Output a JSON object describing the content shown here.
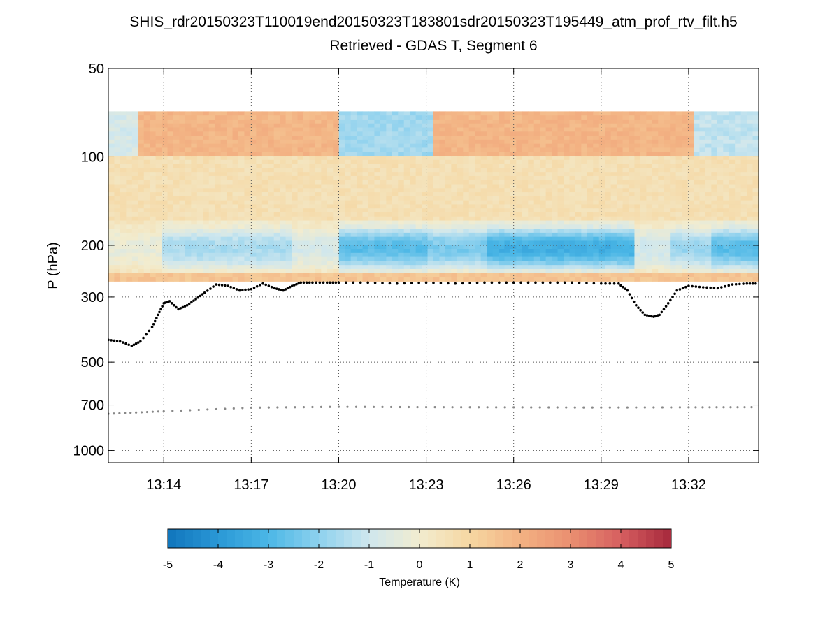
{
  "chart_data": {
    "type": "heatmap",
    "title": "SHIS_rdr20150323T110019end20150323T183801sdr20150323T195449_atm_prof_rtv_filt.h5",
    "subtitle": "Retrieved - GDAS T, Segment 6",
    "ylabel": "P (hPa)",
    "yscale": "log",
    "yaxis_reversed": true,
    "ylim": [
      50,
      1100
    ],
    "y_ticks": [
      50,
      100,
      200,
      300,
      500,
      700,
      1000
    ],
    "y_tick_labels": [
      "50",
      "100",
      "200",
      "300",
      "500",
      "700",
      "1000"
    ],
    "xlim_minutes": [
      792.1,
      814.4
    ],
    "x_ticks_minutes": [
      794,
      797,
      800,
      803,
      806,
      809,
      812
    ],
    "x_tick_labels": [
      "13:14",
      "13:17",
      "13:20",
      "13:23",
      "13:26",
      "13:29",
      "13:32"
    ],
    "grid": true,
    "colorbar": {
      "label": "Temperature (K)",
      "range": [
        -5,
        5
      ],
      "tick_values": [
        -5,
        -4,
        -3,
        -2,
        -1,
        0,
        1,
        2,
        3,
        4,
        5
      ],
      "tick_labels": [
        "-5",
        "-4",
        "-3",
        "-2",
        "-1",
        "0",
        "1",
        "2",
        "3",
        "4",
        "5"
      ],
      "colors": [
        "#1075bc",
        "#2a98d6",
        "#4bb7e6",
        "#8ed1ee",
        "#cfe7ee",
        "#f2eccf",
        "#f6d7a2",
        "#f3b283",
        "#ea8f70",
        "#d65f60",
        "#a6283c"
      ]
    },
    "data_top_pressure": 70,
    "data_bottom_pressure": 265,
    "layers": [
      {
        "name": "upper layer 70-100 hPa",
        "p_top": 70,
        "p_bottom": 100,
        "typical_value": 1.9
      },
      {
        "name": "middle layer 100-165 hPa",
        "p_top": 100,
        "p_bottom": 165,
        "typical_value": 0.6
      },
      {
        "name": "cold band 165-255 hPa",
        "p_top": 165,
        "p_bottom": 255,
        "typical_value": -2.4
      },
      {
        "name": "warm strip near bottom",
        "p_top": 250,
        "p_bottom": 265,
        "typical_value": 1.5
      }
    ],
    "upper_cool_periods": [
      {
        "start": 800.0,
        "end": 803.3,
        "value": -1.7
      },
      {
        "start": 792.1,
        "end": 793.2,
        "value": -0.8
      },
      {
        "start": 812.1,
        "end": 814.4,
        "value": -1.2
      }
    ],
    "cold_band_intensity": [
      {
        "start": 792.1,
        "end": 794.0,
        "value": -0.3
      },
      {
        "start": 794.0,
        "end": 798.3,
        "value": -1.6
      },
      {
        "start": 798.3,
        "end": 800.0,
        "value": -0.8
      },
      {
        "start": 800.0,
        "end": 803.0,
        "value": -2.8
      },
      {
        "start": 803.0,
        "end": 805.0,
        "value": -2.3
      },
      {
        "start": 805.0,
        "end": 810.2,
        "value": -3.3
      },
      {
        "start": 810.2,
        "end": 811.3,
        "value": -0.9
      },
      {
        "start": 811.3,
        "end": 812.7,
        "value": -1.8
      },
      {
        "start": 812.7,
        "end": 814.4,
        "value": -2.8
      }
    ],
    "series": [
      {
        "name": "upper boundary (black dots)",
        "color": "#000000",
        "x": [
          792.1,
          792.5,
          792.9,
          793.2,
          793.6,
          793.8,
          794.0,
          794.2,
          794.5,
          794.8,
          795.1,
          795.4,
          795.8,
          796.2,
          796.6,
          797.0,
          797.4,
          797.8,
          798.1,
          798.4,
          798.7,
          799.1,
          799.6,
          800.0,
          801.0,
          802.0,
          803.0,
          804.0,
          805.0,
          806.0,
          807.0,
          808.0,
          809.0,
          809.6,
          809.9,
          810.2,
          810.5,
          810.8,
          811.0,
          811.3,
          811.6,
          812.0,
          812.5,
          813.0,
          813.5,
          814.0,
          814.4
        ],
        "y": [
          420,
          425,
          440,
          425,
          380,
          345,
          315,
          310,
          330,
          320,
          305,
          290,
          272,
          275,
          285,
          282,
          270,
          280,
          285,
          275,
          268,
          268,
          268,
          268,
          268,
          270,
          268,
          270,
          268,
          268,
          268,
          268,
          270,
          270,
          285,
          320,
          345,
          350,
          345,
          315,
          285,
          275,
          278,
          280,
          272,
          270,
          270
        ]
      },
      {
        "name": "lower boundary (gray dots)",
        "color": "#888888",
        "x": [
          792.1,
          794.0,
          797.0,
          800.0,
          803.0,
          806.0,
          809.0,
          812.0,
          814.4
        ],
        "y": [
          750,
          735,
          715,
          710,
          712,
          713,
          714,
          713,
          712
        ]
      }
    ]
  }
}
